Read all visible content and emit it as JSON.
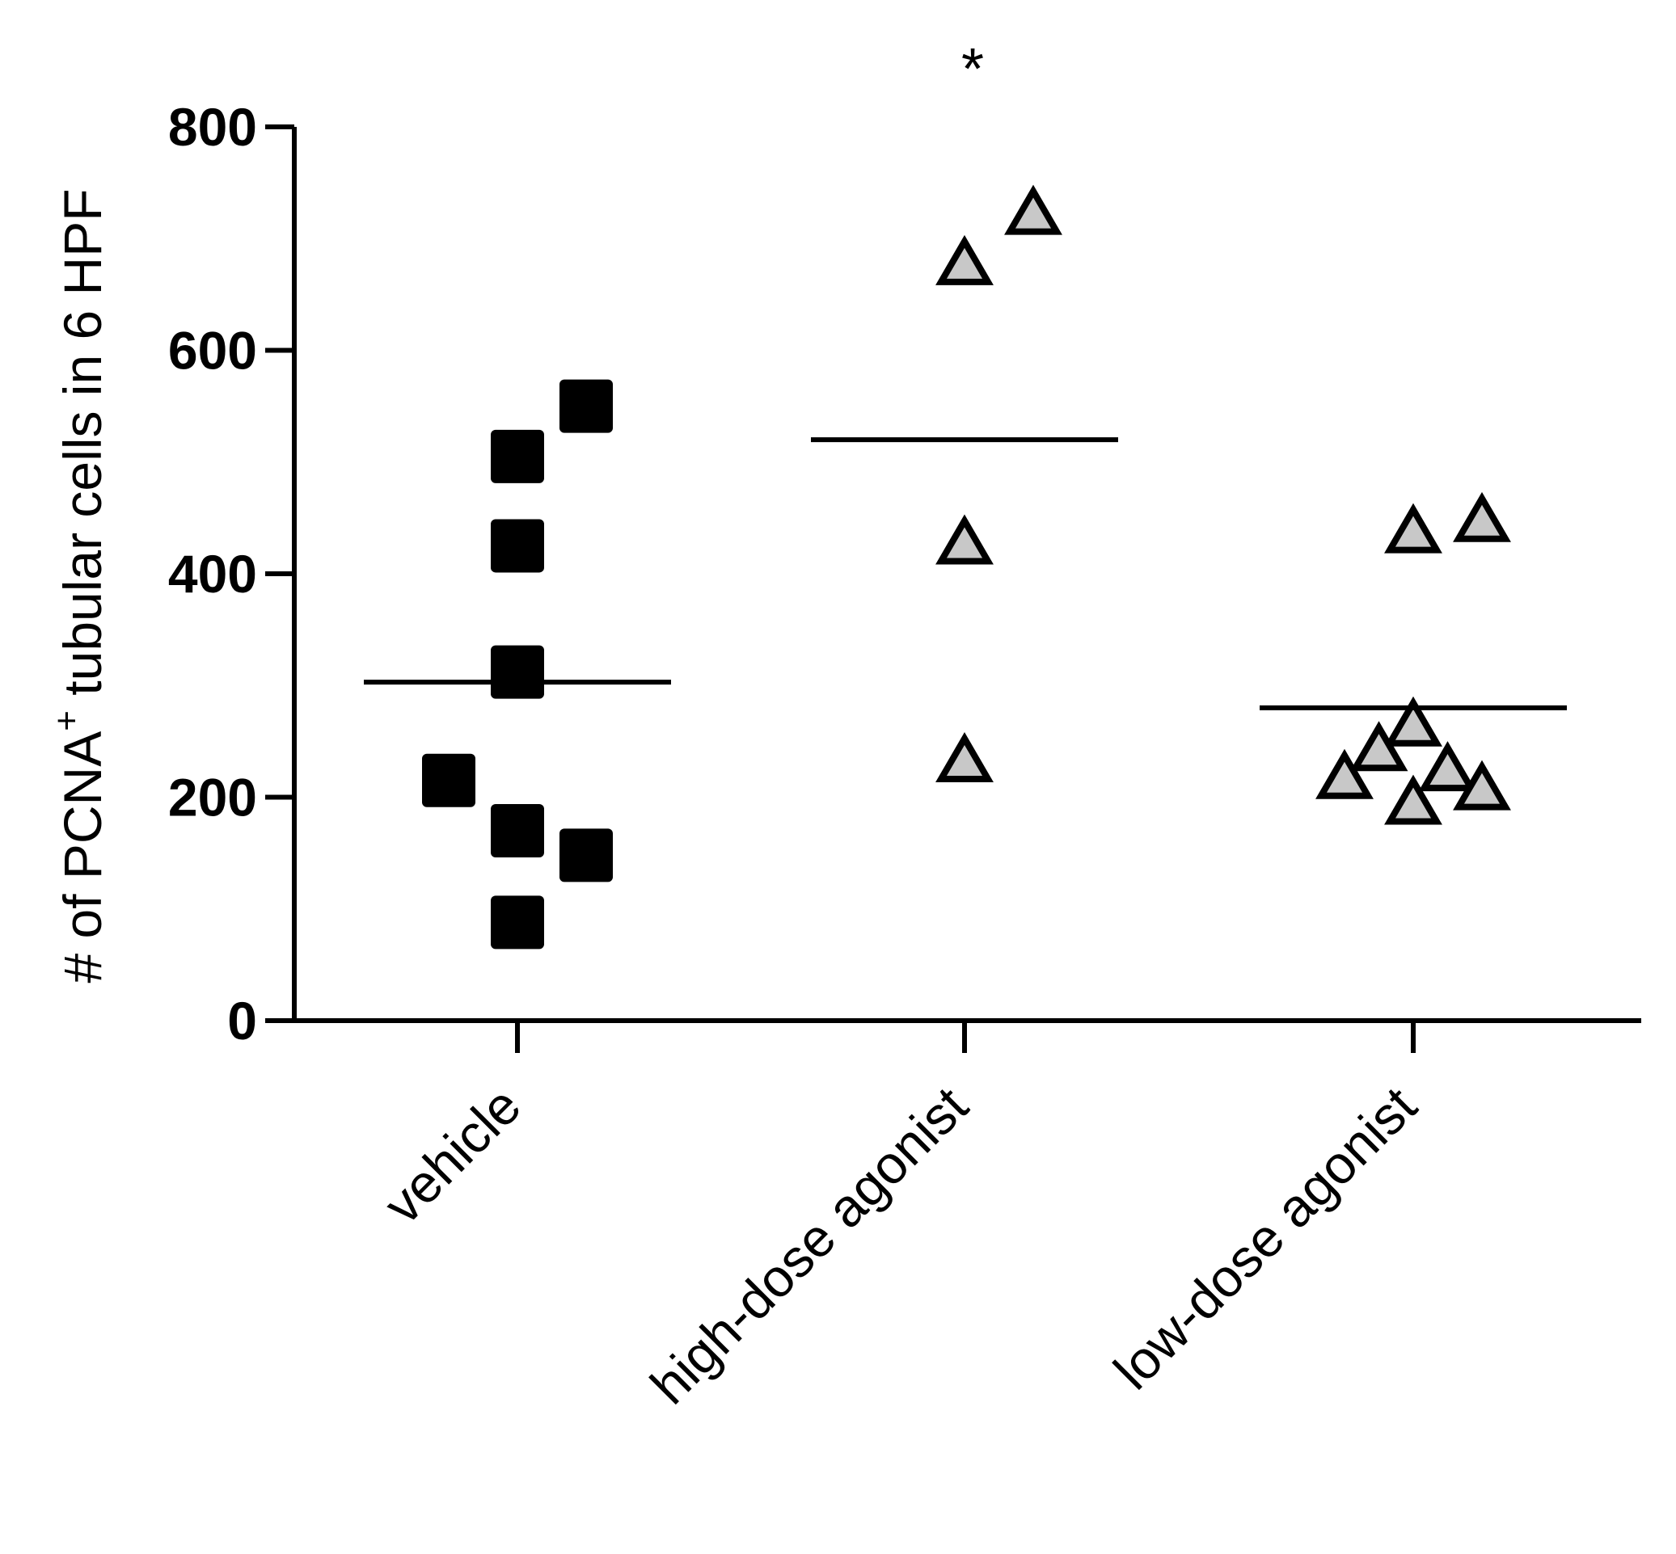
{
  "chart_data": {
    "type": "scatter",
    "title": "",
    "xlabel": "",
    "ylabel": {
      "prefix": "# of PCNA",
      "superscript": "+",
      "suffix": " tubular cells in 6 HPF"
    },
    "ylim": [
      0,
      800
    ],
    "yticks": [
      "0",
      "200",
      "400",
      "600",
      "800"
    ],
    "grid": false,
    "categories": [
      "vehicle",
      "high-dose agonist",
      "low-dose agonist"
    ],
    "series": [
      {
        "category": "vehicle",
        "marker": "square",
        "color": "#000000",
        "points": [
          {
            "offset": 0,
            "y": 505
          },
          {
            "offset": 1,
            "y": 550
          },
          {
            "offset": 0,
            "y": 425
          },
          {
            "offset": 0,
            "y": 312
          },
          {
            "offset": -1,
            "y": 215
          },
          {
            "offset": 0,
            "y": 170
          },
          {
            "offset": 1,
            "y": 148
          },
          {
            "offset": 0,
            "y": 88
          }
        ],
        "mean": 303
      },
      {
        "category": "high-dose agonist",
        "marker": "triangle",
        "color": "#c8c8c8",
        "points": [
          {
            "offset": 1,
            "y": 720
          },
          {
            "offset": 0,
            "y": 675
          },
          {
            "offset": 0,
            "y": 425
          },
          {
            "offset": 0,
            "y": 230
          }
        ],
        "mean": 520
      },
      {
        "category": "low-dose agonist",
        "marker": "triangle",
        "color": "#c8c8c8",
        "points": [
          {
            "offset": 0,
            "y": 435
          },
          {
            "offset": 1,
            "y": 445
          },
          {
            "offset": 0,
            "y": 262
          },
          {
            "offset": -0.5,
            "y": 240
          },
          {
            "offset": 0.5,
            "y": 222
          },
          {
            "offset": -1,
            "y": 215
          },
          {
            "offset": 1,
            "y": 205
          },
          {
            "offset": 0,
            "y": 192
          }
        ],
        "mean": 280
      }
    ],
    "annotations": [
      {
        "text": "*",
        "category": "high-dose agonist"
      }
    ]
  }
}
